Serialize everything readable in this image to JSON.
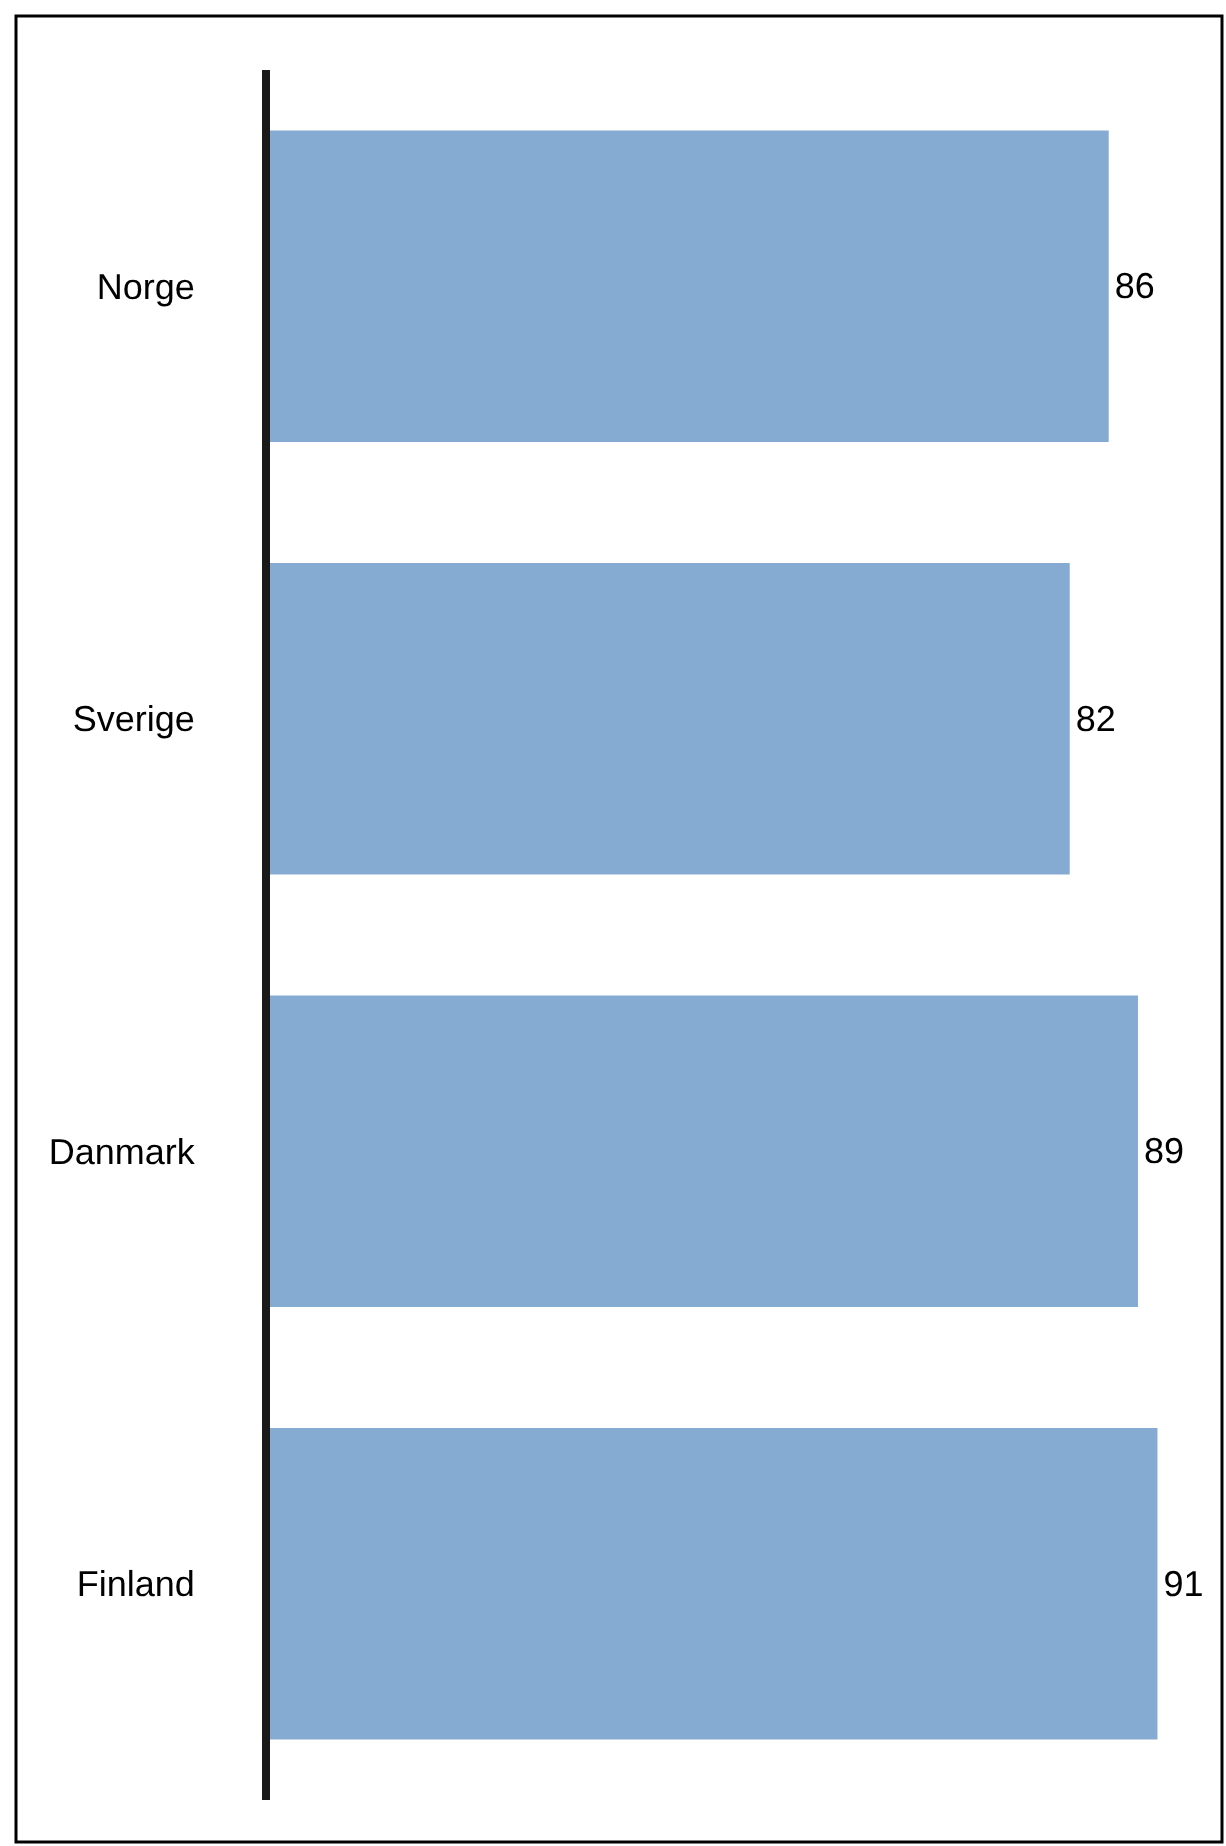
{
  "chart_data": {
    "type": "bar",
    "orientation": "horizontal",
    "categories": [
      "Norge",
      "Sverige",
      "Danmark",
      "Finland"
    ],
    "values": [
      86,
      82,
      89,
      91
    ],
    "color": "#86abd3",
    "xlim": [
      0,
      97
    ],
    "data_labels": true
  }
}
